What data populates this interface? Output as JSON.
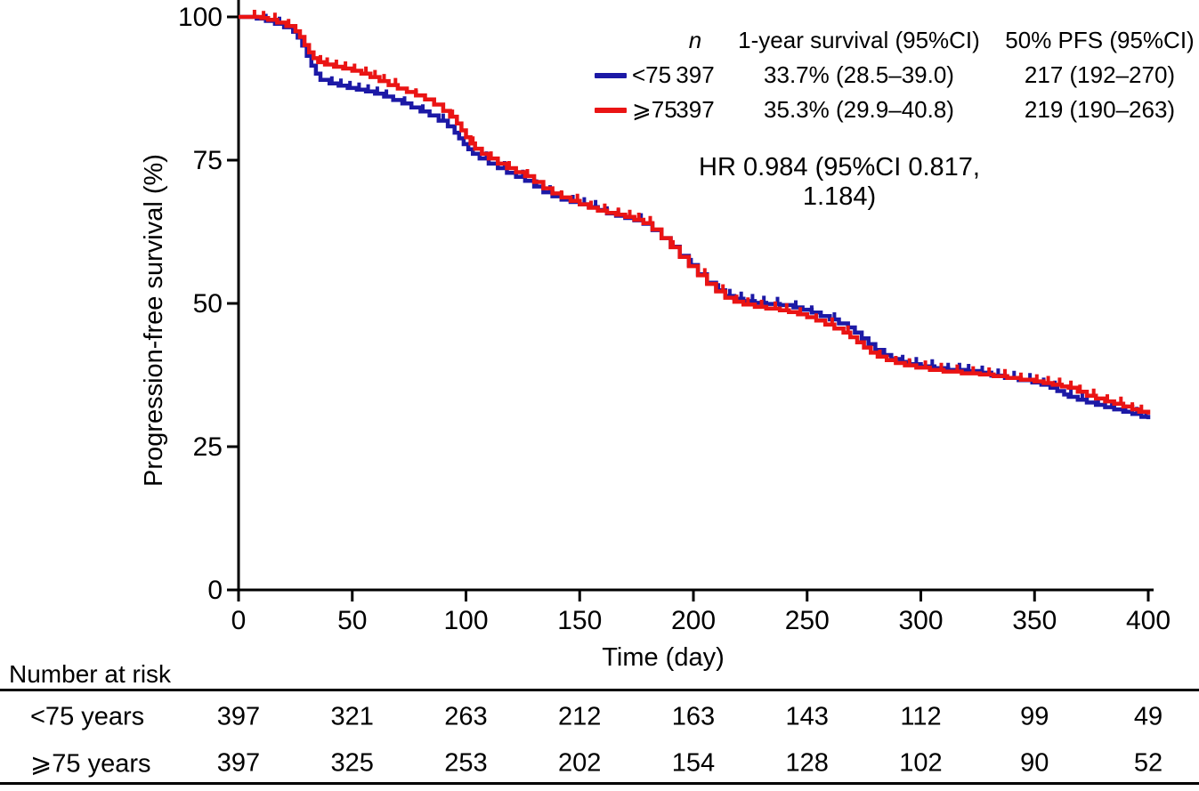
{
  "figure": {
    "ylabel": "Progression-free survival (%)",
    "xlabel": "Time (day)",
    "annotation": "HR 0.984 (95%CI 0.817, 1.184)"
  },
  "legend": {
    "header": {
      "n": "n",
      "survival": "1-year survival (95%CI)",
      "pfs": "50% PFS (95%CI)"
    },
    "rows": [
      {
        "label": "<75",
        "n": "397",
        "survival": "33.7% (28.5–39.0)",
        "pfs": "217 (192–270)",
        "color": "#1c19a6"
      },
      {
        "label": "⩾75",
        "n": "397",
        "survival": "35.3% (29.9–40.8)",
        "pfs": "219 (190–263)",
        "color": "#ea1414"
      }
    ]
  },
  "risk_table": {
    "heading": "Number at risk",
    "times": [
      0,
      50,
      100,
      150,
      200,
      250,
      300,
      350,
      400
    ],
    "rows": [
      {
        "label": "<75 years",
        "counts": [
          397,
          321,
          263,
          212,
          163,
          143,
          112,
          99,
          49
        ]
      },
      {
        "label": "⩾75 years",
        "counts": [
          397,
          325,
          253,
          202,
          154,
          128,
          102,
          90,
          52
        ]
      }
    ]
  },
  "chart_data": {
    "type": "line",
    "subtype": "kaplan-meier-step",
    "title": "",
    "xlabel": "Time (day)",
    "ylabel": "Progression-free survival (%)",
    "xlim": [
      0,
      400
    ],
    "ylim": [
      0,
      100
    ],
    "xticks": [
      0,
      50,
      100,
      150,
      200,
      250,
      300,
      350,
      400
    ],
    "yticks": [
      0,
      25,
      50,
      75,
      100
    ],
    "grid": false,
    "legend_position": "top-right",
    "annotation": "HR 0.984 (95%CI 0.817, 1.184)",
    "series": [
      {
        "name": "<75",
        "n": 397,
        "one_year_survival": "33.7% (28.5-39.0)",
        "median_pfs": "217 (192-270)",
        "color": "#1c19a6",
        "points": [
          [
            0,
            100
          ],
          [
            8,
            99.7
          ],
          [
            12,
            99.3
          ],
          [
            16,
            98.8
          ],
          [
            20,
            98.2
          ],
          [
            24,
            97.4
          ],
          [
            26,
            96.4
          ],
          [
            28,
            95.0
          ],
          [
            30,
            93.2
          ],
          [
            32,
            91.5
          ],
          [
            34,
            90.1
          ],
          [
            36,
            89.0
          ],
          [
            40,
            88.4
          ],
          [
            44,
            88.0
          ],
          [
            48,
            87.6
          ],
          [
            52,
            87.3
          ],
          [
            56,
            87.0
          ],
          [
            60,
            86.6
          ],
          [
            64,
            86.1
          ],
          [
            68,
            85.5
          ],
          [
            72,
            84.9
          ],
          [
            76,
            84.2
          ],
          [
            80,
            83.5
          ],
          [
            84,
            82.8
          ],
          [
            88,
            81.9
          ],
          [
            92,
            80.9
          ],
          [
            95,
            79.8
          ],
          [
            97,
            78.8
          ],
          [
            99,
            77.8
          ],
          [
            101,
            76.9
          ],
          [
            103,
            76.1
          ],
          [
            106,
            75.3
          ],
          [
            110,
            74.4
          ],
          [
            114,
            73.6
          ],
          [
            118,
            72.8
          ],
          [
            122,
            72.1
          ],
          [
            126,
            71.4
          ],
          [
            130,
            70.4
          ],
          [
            134,
            69.4
          ],
          [
            138,
            68.7
          ],
          [
            142,
            68.1
          ],
          [
            146,
            67.7
          ],
          [
            150,
            67.3
          ],
          [
            154,
            66.8
          ],
          [
            158,
            66.3
          ],
          [
            162,
            65.7
          ],
          [
            166,
            65.3
          ],
          [
            170,
            64.9
          ],
          [
            174,
            64.5
          ],
          [
            178,
            63.9
          ],
          [
            182,
            62.8
          ],
          [
            186,
            61.4
          ],
          [
            190,
            59.9
          ],
          [
            194,
            58.3
          ],
          [
            198,
            56.7
          ],
          [
            202,
            55.1
          ],
          [
            206,
            53.6
          ],
          [
            210,
            52.3
          ],
          [
            214,
            51.3
          ],
          [
            218,
            50.8
          ],
          [
            222,
            50.4
          ],
          [
            227,
            50.1
          ],
          [
            232,
            49.9
          ],
          [
            238,
            49.7
          ],
          [
            244,
            49.3
          ],
          [
            248,
            48.9
          ],
          [
            252,
            48.4
          ],
          [
            256,
            47.8
          ],
          [
            260,
            47.2
          ],
          [
            264,
            46.5
          ],
          [
            268,
            45.8
          ],
          [
            271,
            44.9
          ],
          [
            274,
            43.9
          ],
          [
            277,
            42.9
          ],
          [
            280,
            41.9
          ],
          [
            283,
            41.0
          ],
          [
            287,
            40.3
          ],
          [
            291,
            39.8
          ],
          [
            295,
            39.4
          ],
          [
            300,
            39.0
          ],
          [
            306,
            38.7
          ],
          [
            312,
            38.4
          ],
          [
            320,
            38.2
          ],
          [
            326,
            37.9
          ],
          [
            331,
            37.4
          ],
          [
            337,
            37.0
          ],
          [
            343,
            36.6
          ],
          [
            349,
            36.2
          ],
          [
            353,
            35.8
          ],
          [
            357,
            35.3
          ],
          [
            360,
            34.7
          ],
          [
            363,
            34.1
          ],
          [
            365,
            33.7
          ],
          [
            369,
            33.2
          ],
          [
            373,
            32.7
          ],
          [
            377,
            32.3
          ],
          [
            381,
            31.9
          ],
          [
            385,
            31.5
          ],
          [
            389,
            31.1
          ],
          [
            393,
            30.7
          ],
          [
            397,
            30.2
          ],
          [
            400,
            29.8
          ]
        ],
        "censor_days": [
          12,
          18,
          24,
          41,
          45,
          49,
          53,
          57,
          61,
          65,
          73,
          81,
          90,
          101,
          109,
          117,
          125,
          131,
          137,
          147,
          152,
          157,
          162,
          167,
          172,
          177,
          186,
          199,
          211,
          216,
          221,
          226,
          231,
          237,
          245,
          252,
          262,
          284,
          292,
          298,
          305,
          312,
          317,
          321,
          327,
          334,
          341,
          348,
          354,
          359,
          366,
          371,
          378,
          384,
          390,
          395,
          399
        ]
      },
      {
        "name": "⩾75",
        "n": 397,
        "one_year_survival": "35.3% (29.9-40.8)",
        "median_pfs": "219 (190-263)",
        "color": "#ea1414",
        "points": [
          [
            0,
            100
          ],
          [
            10,
            99.8
          ],
          [
            13,
            99.5
          ],
          [
            17,
            99.0
          ],
          [
            21,
            98.4
          ],
          [
            25,
            97.5
          ],
          [
            27,
            96.5
          ],
          [
            29,
            95.1
          ],
          [
            31,
            93.8
          ],
          [
            33,
            92.8
          ],
          [
            35,
            92.1
          ],
          [
            38,
            91.7
          ],
          [
            42,
            91.3
          ],
          [
            46,
            91.0
          ],
          [
            50,
            90.6
          ],
          [
            54,
            90.1
          ],
          [
            58,
            89.5
          ],
          [
            62,
            88.8
          ],
          [
            66,
            88.1
          ],
          [
            70,
            87.5
          ],
          [
            74,
            86.9
          ],
          [
            78,
            86.3
          ],
          [
            82,
            85.6
          ],
          [
            86,
            84.7
          ],
          [
            90,
            83.6
          ],
          [
            93,
            82.6
          ],
          [
            96,
            81.4
          ],
          [
            98,
            80.2
          ],
          [
            100,
            79.0
          ],
          [
            102,
            77.9
          ],
          [
            104,
            77.0
          ],
          [
            107,
            76.1
          ],
          [
            110,
            75.3
          ],
          [
            114,
            74.4
          ],
          [
            118,
            73.6
          ],
          [
            122,
            72.9
          ],
          [
            126,
            72.2
          ],
          [
            130,
            71.2
          ],
          [
            134,
            70.1
          ],
          [
            138,
            69.2
          ],
          [
            142,
            68.5
          ],
          [
            146,
            67.9
          ],
          [
            150,
            67.3
          ],
          [
            154,
            66.7
          ],
          [
            158,
            66.2
          ],
          [
            162,
            65.8
          ],
          [
            166,
            65.5
          ],
          [
            170,
            65.1
          ],
          [
            174,
            64.6
          ],
          [
            178,
            64.0
          ],
          [
            182,
            62.9
          ],
          [
            186,
            61.4
          ],
          [
            190,
            59.8
          ],
          [
            194,
            58.1
          ],
          [
            198,
            56.5
          ],
          [
            202,
            54.9
          ],
          [
            206,
            53.4
          ],
          [
            210,
            52.1
          ],
          [
            214,
            51.0
          ],
          [
            218,
            50.3
          ],
          [
            222,
            49.8
          ],
          [
            227,
            49.4
          ],
          [
            232,
            49.1
          ],
          [
            238,
            48.8
          ],
          [
            242,
            48.5
          ],
          [
            246,
            48.1
          ],
          [
            250,
            47.6
          ],
          [
            254,
            47.0
          ],
          [
            258,
            46.3
          ],
          [
            262,
            45.6
          ],
          [
            266,
            44.9
          ],
          [
            269,
            44.1
          ],
          [
            272,
            43.2
          ],
          [
            275,
            42.3
          ],
          [
            278,
            41.4
          ],
          [
            281,
            40.7
          ],
          [
            285,
            40.1
          ],
          [
            289,
            39.6
          ],
          [
            293,
            39.2
          ],
          [
            298,
            38.8
          ],
          [
            304,
            38.4
          ],
          [
            310,
            38.1
          ],
          [
            318,
            37.8
          ],
          [
            326,
            37.6
          ],
          [
            332,
            37.3
          ],
          [
            338,
            37.0
          ],
          [
            344,
            36.7
          ],
          [
            350,
            36.4
          ],
          [
            354,
            36.1
          ],
          [
            358,
            35.8
          ],
          [
            362,
            35.5
          ],
          [
            365,
            35.3
          ],
          [
            369,
            34.6
          ],
          [
            373,
            33.9
          ],
          [
            377,
            33.4
          ],
          [
            381,
            32.9
          ],
          [
            385,
            32.5
          ],
          [
            389,
            32.0
          ],
          [
            393,
            31.5
          ],
          [
            396,
            31.1
          ],
          [
            400,
            30.6
          ]
        ],
        "censor_days": [
          7,
          11,
          16,
          22,
          31,
          36,
          39,
          43,
          47,
          51,
          56,
          60,
          64,
          69,
          78,
          86,
          94,
          103,
          111,
          119,
          127,
          134,
          142,
          149,
          155,
          161,
          167,
          172,
          176,
          181,
          191,
          205,
          213,
          219,
          224,
          230,
          236,
          241,
          247,
          254,
          261,
          268,
          275,
          282,
          289,
          295,
          302,
          309,
          316,
          323,
          330,
          337,
          344,
          351,
          356,
          361,
          366,
          370,
          376,
          382,
          388,
          393,
          397
        ]
      }
    ]
  }
}
